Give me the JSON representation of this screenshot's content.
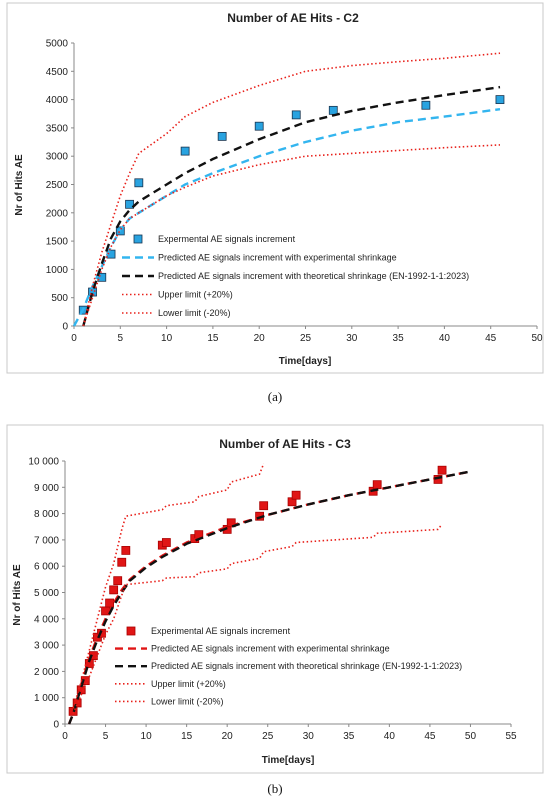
{
  "chart_data": [
    {
      "type": "line",
      "title": "Number of AE Hits - C2",
      "xlabel": "Time[days]",
      "ylabel": "Nr of Hits AE",
      "xlim": [
        0,
        50
      ],
      "ylim": [
        0,
        5000
      ],
      "xticks": [
        "0",
        "5",
        "10",
        "15",
        "20",
        "25",
        "30",
        "35",
        "40",
        "45",
        "50"
      ],
      "yticks": [
        "0",
        "500",
        "1000",
        "1500",
        "2000",
        "2500",
        "3000",
        "3500",
        "4000",
        "4500",
        "5000"
      ],
      "grid": false,
      "legend_position": "lower-right",
      "caption": "(a)",
      "colors": {
        "experimental": "#29a3e0",
        "pred_exp": "#33b5ef",
        "pred_theo": "#111111",
        "limits": "#e8201a"
      },
      "series": [
        {
          "name": "Expermental AE signals increment",
          "style": "square-marker",
          "x": [
            1,
            2,
            3,
            4,
            5,
            6,
            7,
            12,
            16,
            20,
            24,
            28,
            38,
            46
          ],
          "y": [
            280,
            600,
            860,
            1270,
            1680,
            2150,
            2530,
            3090,
            3350,
            3530,
            3730,
            3810,
            3900,
            4000
          ]
        },
        {
          "name": "Predicted AE signals increment with experimental shrinkage",
          "style": "dashed",
          "x": [
            0,
            1,
            2,
            3,
            4,
            5,
            6,
            7,
            10,
            12,
            15,
            20,
            25,
            30,
            35,
            40,
            46
          ],
          "y": [
            0,
            300,
            700,
            1050,
            1400,
            1700,
            1900,
            2000,
            2300,
            2500,
            2700,
            3000,
            3250,
            3450,
            3600,
            3700,
            3830
          ]
        },
        {
          "name": "Predicted AE signals increment with theoretical shrinkage (EN-1992-1-1:2023)",
          "style": "dashed",
          "x": [
            1,
            2,
            3,
            4,
            5,
            6,
            7,
            10,
            12,
            15,
            20,
            25,
            30,
            35,
            40,
            46
          ],
          "y": [
            0,
            600,
            1100,
            1550,
            1850,
            2050,
            2200,
            2500,
            2700,
            2950,
            3300,
            3600,
            3800,
            3950,
            4080,
            4220
          ]
        },
        {
          "name": "Upper limit (+20%)",
          "style": "dotted",
          "x": [
            1,
            2,
            3,
            4,
            5,
            6,
            7,
            10,
            12,
            15,
            20,
            25,
            30,
            35,
            40,
            46
          ],
          "y": [
            0,
            700,
            1300,
            1800,
            2300,
            2700,
            3050,
            3400,
            3700,
            3950,
            4250,
            4500,
            4600,
            4670,
            4730,
            4820
          ]
        },
        {
          "name": "Lower limit (-20%)",
          "style": "dotted",
          "x": [
            1,
            2,
            3,
            4,
            5,
            6,
            7,
            10,
            12,
            15,
            20,
            25,
            30,
            35,
            40,
            46
          ],
          "y": [
            0,
            500,
            1000,
            1400,
            1700,
            1900,
            2000,
            2300,
            2450,
            2650,
            2850,
            3000,
            3050,
            3100,
            3150,
            3200
          ]
        }
      ]
    },
    {
      "type": "line",
      "title": "Number of AE Hits - C3",
      "xlabel": "Time[days]",
      "ylabel": "Nr of Hits AE",
      "xlim": [
        0,
        55
      ],
      "ylim": [
        0,
        10000
      ],
      "xticks": [
        "0",
        "5",
        "10",
        "15",
        "20",
        "25",
        "30",
        "35",
        "40",
        "45",
        "50",
        "55"
      ],
      "yticks": [
        "0",
        "1 000",
        "2 000",
        "3 000",
        "4 000",
        "5 000",
        "6 000",
        "7 000",
        "8 000",
        "9 000",
        "10 000"
      ],
      "grid": false,
      "legend_position": "lower-right",
      "caption": "(b)",
      "colors": {
        "experimental": "#e01515",
        "pred_exp": "#e01515",
        "pred_theo": "#111111",
        "limits": "#e8201a"
      },
      "series": [
        {
          "name": "Experimental AE signals increment",
          "style": "square-marker",
          "x": [
            1,
            1.5,
            2,
            2.5,
            3,
            3.5,
            4,
            4.5,
            5,
            5.5,
            6,
            6.5,
            7,
            7.5,
            12,
            12.5,
            16,
            16.5,
            20,
            20.5,
            24,
            24.5,
            28,
            28.5,
            38,
            38.5,
            46,
            46.5
          ],
          "y": [
            480,
            800,
            1300,
            1650,
            2300,
            2600,
            3300,
            3450,
            4300,
            4600,
            5100,
            5450,
            6150,
            6600,
            6800,
            6900,
            7050,
            7200,
            7400,
            7650,
            7900,
            8300,
            8450,
            8700,
            8850,
            9100,
            9300,
            9650
          ]
        },
        {
          "name": "Predicted AE signals increment with experimental shrinkage",
          "style": "dashed",
          "x": [
            0.5,
            1,
            2,
            3,
            4,
            5,
            6,
            7,
            8,
            10,
            12,
            15,
            20,
            25,
            30,
            35,
            40,
            45,
            50
          ],
          "y": [
            0,
            400,
            1500,
            2500,
            3300,
            4000,
            4600,
            5100,
            5500,
            6000,
            6400,
            6900,
            7500,
            7950,
            8350,
            8700,
            9000,
            9300,
            9600
          ]
        },
        {
          "name": "Predicted AE signals increment with theoretical shrinkage (EN-1992-1-1:2023)",
          "style": "dashed",
          "x": [
            0.5,
            1,
            2,
            3,
            4,
            5,
            6,
            7,
            8,
            10,
            12,
            15,
            20,
            25,
            30,
            35,
            40,
            45,
            50
          ],
          "y": [
            0,
            380,
            1400,
            2400,
            3200,
            3900,
            4500,
            5000,
            5450,
            5950,
            6350,
            6850,
            7450,
            7950,
            8350,
            8700,
            9000,
            9300,
            9600
          ]
        },
        {
          "name": "Upper limit (+20%)",
          "style": "dotted",
          "x": [
            1,
            2,
            3,
            4,
            5,
            6,
            7,
            7.5,
            12,
            12.5,
            16,
            16.5,
            20,
            20.5,
            24,
            24.5
          ],
          "y": [
            600,
            1600,
            2800,
            4000,
            5200,
            6100,
            7400,
            7900,
            8150,
            8300,
            8450,
            8650,
            8900,
            9200,
            9500,
            9900
          ]
        },
        {
          "name": "Lower limit (-20%)",
          "style": "dotted",
          "x": [
            1,
            2,
            3,
            4,
            5,
            6,
            7,
            7.5,
            12,
            12.5,
            16,
            16.5,
            20,
            20.5,
            24,
            24.5,
            28,
            28.5,
            38,
            38.5,
            46,
            46.5
          ],
          "y": [
            400,
            1100,
            1800,
            2600,
            3400,
            4000,
            4900,
            5300,
            5450,
            5550,
            5600,
            5750,
            5900,
            6100,
            6300,
            6550,
            6750,
            6900,
            7100,
            7250,
            7400,
            7600
          ]
        }
      ]
    }
  ]
}
